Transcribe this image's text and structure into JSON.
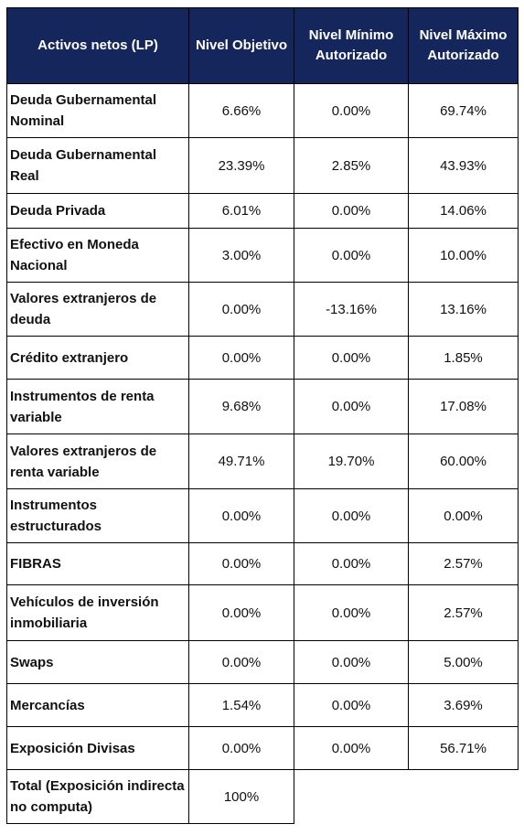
{
  "header": {
    "col1": "Activos netos (LP)",
    "col2": "Nivel Objetivo",
    "col3": "Nivel Mínimo Autorizado",
    "col4": "Nivel Máximo Autorizado"
  },
  "rows": [
    {
      "label": "Deuda Gubernamental Nominal",
      "objetivo": "6.66%",
      "minimo": "0.00%",
      "maximo": "69.74%"
    },
    {
      "label": "Deuda Gubernamental Real",
      "objetivo": "23.39%",
      "minimo": "2.85%",
      "maximo": "43.93%"
    },
    {
      "label": "Deuda Privada",
      "objetivo": "6.01%",
      "minimo": "0.00%",
      "maximo": "14.06%"
    },
    {
      "label": "Efectivo en Moneda Nacional",
      "objetivo": "3.00%",
      "minimo": "0.00%",
      "maximo": "10.00%"
    },
    {
      "label": "Valores extranjeros de deuda",
      "objetivo": "0.00%",
      "minimo": "-13.16%",
      "maximo": "13.16%"
    },
    {
      "label": "Crédito extranjero",
      "objetivo": "0.00%",
      "minimo": "0.00%",
      "maximo": "1.85%"
    },
    {
      "label": "Instrumentos de renta variable",
      "objetivo": "9.68%",
      "minimo": "0.00%",
      "maximo": "17.08%"
    },
    {
      "label": "Valores extranjeros de renta variable",
      "objetivo": "49.71%",
      "minimo": "19.70%",
      "maximo": "60.00%"
    },
    {
      "label": "Instrumentos estructurados",
      "objetivo": "0.00%",
      "minimo": "0.00%",
      "maximo": "0.00%"
    },
    {
      "label": "FIBRAS",
      "objetivo": "0.00%",
      "minimo": "0.00%",
      "maximo": "2.57%"
    },
    {
      "label": "Vehículos de inversión inmobiliaria",
      "objetivo": "0.00%",
      "minimo": "0.00%",
      "maximo": "2.57%"
    },
    {
      "label": "Swaps",
      "objetivo": "0.00%",
      "minimo": "0.00%",
      "maximo": "5.00%"
    },
    {
      "label": "Mercancías",
      "objetivo": "1.54%",
      "minimo": "0.00%",
      "maximo": "3.69%"
    },
    {
      "label": "Exposición Divisas",
      "objetivo": "0.00%",
      "minimo": "0.00%",
      "maximo": "56.71%"
    }
  ],
  "total": {
    "label": "Total (Exposición indirecta no computa)",
    "objetivo": "100%"
  },
  "colors": {
    "header_bg": "#14265c",
    "header_text": "#ffffff",
    "border": "#000000"
  }
}
